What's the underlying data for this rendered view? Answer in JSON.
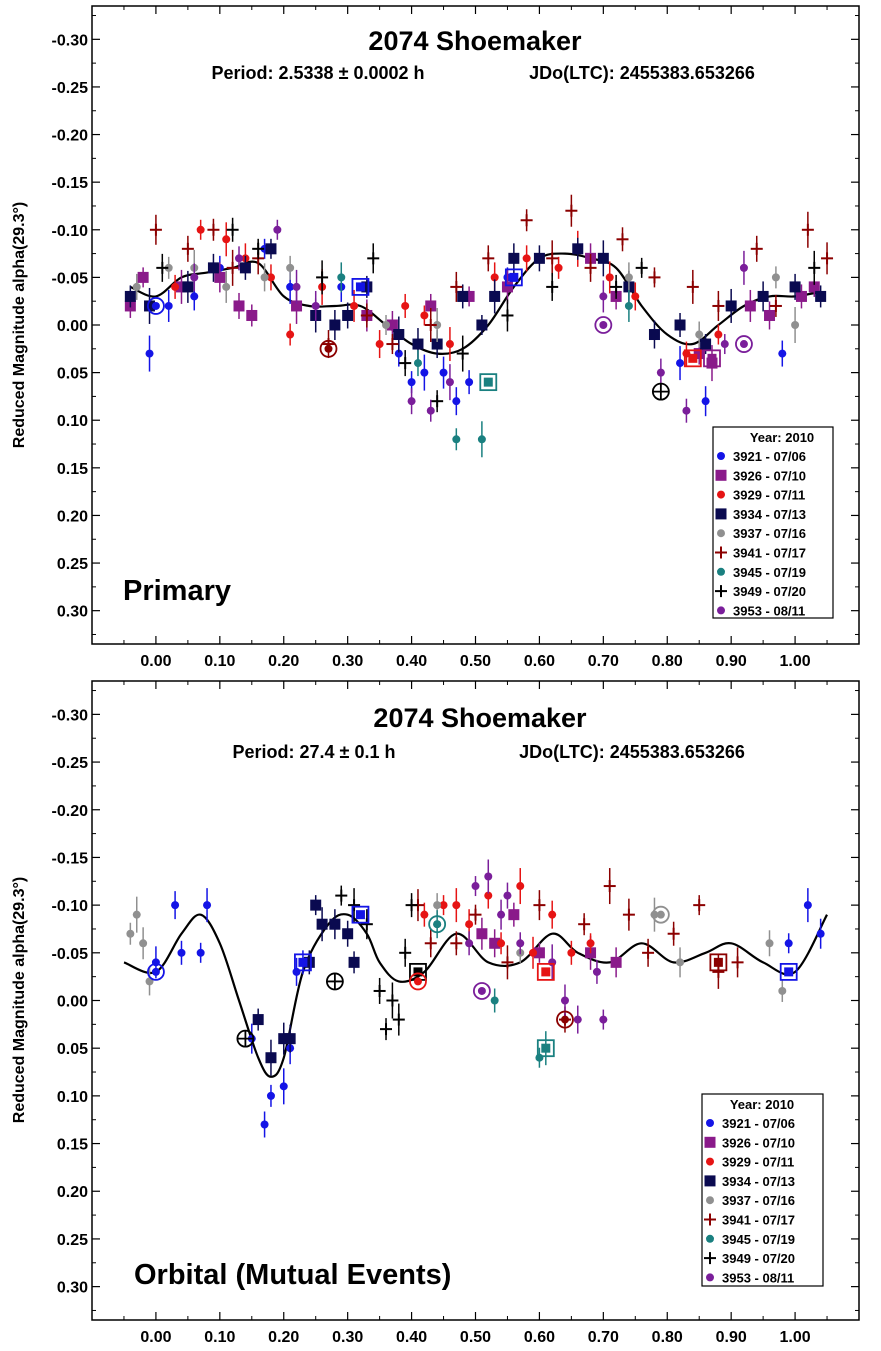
{
  "chart_data": [
    {
      "type": "scatter",
      "title": "2074 Shoemaker",
      "subtitle_period": "Period: 2.5338 ± 0.0002 h",
      "subtitle_epoch": "JDo(LTC): 2455383.653266",
      "ylabel": "Reduced Magnitude alpha(29.3°)",
      "panel_label": "Primary",
      "xlim": [
        -0.1,
        1.1
      ],
      "ylim": [
        0.335,
        -0.335
      ],
      "x_ticks": [
        "0.00",
        "0.10",
        "0.20",
        "0.30",
        "0.40",
        "0.50",
        "0.60",
        "0.70",
        "0.80",
        "0.90",
        "1.00"
      ],
      "y_ticks": [
        "-0.30",
        "-0.25",
        "-0.20",
        "-0.15",
        "-0.10",
        "-0.05",
        "0.00",
        "0.05",
        "0.10",
        "0.15",
        "0.20",
        "0.25",
        "0.30"
      ],
      "legend_title": "Year: 2010",
      "legend_position": "bottom-right",
      "fit_curve": {
        "x": [
          -0.04,
          0.0,
          0.04,
          0.08,
          0.12,
          0.16,
          0.2,
          0.24,
          0.28,
          0.32,
          0.36,
          0.4,
          0.44,
          0.48,
          0.52,
          0.56,
          0.6,
          0.64,
          0.68,
          0.72,
          0.76,
          0.8,
          0.84,
          0.88,
          0.92,
          0.96,
          1.0,
          1.04
        ],
        "y": [
          -0.04,
          -0.03,
          -0.05,
          -0.055,
          -0.06,
          -0.065,
          -0.03,
          -0.02,
          -0.02,
          -0.02,
          0.0,
          0.02,
          0.03,
          0.025,
          0.0,
          -0.04,
          -0.07,
          -0.075,
          -0.07,
          -0.06,
          -0.02,
          0.01,
          0.02,
          0.0,
          -0.02,
          -0.03,
          -0.03,
          -0.035
        ]
      },
      "series": [
        {
          "name": "3921 - 07/06",
          "marker": "circle",
          "color": "#1414e6",
          "x": [
            -0.01,
            0.02,
            0.06,
            0.1,
            0.17,
            0.21,
            0.29,
            0.38,
            0.4,
            0.42,
            0.45,
            0.47,
            0.49,
            0.55,
            0.82,
            0.86,
            0.98
          ],
          "y": [
            0.03,
            -0.02,
            -0.03,
            -0.06,
            -0.08,
            -0.04,
            -0.04,
            0.03,
            0.06,
            0.05,
            0.05,
            0.08,
            0.06,
            -0.05,
            0.04,
            0.08,
            0.03
          ]
        },
        {
          "name": "3926 - 07/10",
          "marker": "square",
          "color": "#8a1a8a",
          "x": [
            -0.04,
            -0.02,
            0.04,
            0.1,
            0.13,
            0.15,
            0.22,
            0.33,
            0.37,
            0.43,
            0.49,
            0.55,
            0.68,
            0.72,
            0.85,
            0.87,
            0.93,
            0.96,
            1.01,
            1.03
          ],
          "y": [
            -0.02,
            -0.05,
            -0.04,
            -0.05,
            -0.02,
            -0.01,
            -0.02,
            -0.01,
            0.0,
            -0.02,
            -0.03,
            -0.04,
            -0.07,
            -0.03,
            0.03,
            0.04,
            -0.02,
            -0.01,
            -0.03,
            -0.04
          ]
        },
        {
          "name": "3929 - 07/11",
          "marker": "circle",
          "color": "#e61414",
          "x": [
            0.03,
            0.07,
            0.11,
            0.14,
            0.18,
            0.21,
            0.26,
            0.31,
            0.35,
            0.39,
            0.42,
            0.46,
            0.53,
            0.58,
            0.63,
            0.66,
            0.71,
            0.75,
            0.83,
            0.88
          ],
          "y": [
            -0.04,
            -0.1,
            -0.09,
            -0.07,
            -0.05,
            0.01,
            -0.04,
            -0.02,
            0.02,
            -0.02,
            -0.01,
            0.02,
            -0.05,
            -0.07,
            -0.06,
            -0.08,
            -0.05,
            -0.03,
            0.03,
            0.01
          ]
        },
        {
          "name": "3934 - 07/13",
          "marker": "square",
          "color": "#0a0a50",
          "x": [
            -0.04,
            -0.01,
            0.05,
            0.09,
            0.14,
            0.18,
            0.25,
            0.28,
            0.3,
            0.33,
            0.38,
            0.41,
            0.44,
            0.48,
            0.51,
            0.53,
            0.56,
            0.6,
            0.66,
            0.7,
            0.74,
            0.78,
            0.82,
            0.86,
            0.9,
            0.95,
            1.0,
            1.04
          ],
          "y": [
            -0.03,
            -0.02,
            -0.04,
            -0.06,
            -0.06,
            -0.08,
            -0.01,
            0.0,
            -0.01,
            -0.04,
            0.01,
            0.02,
            0.02,
            -0.03,
            0.0,
            -0.03,
            -0.07,
            -0.07,
            -0.08,
            -0.07,
            -0.04,
            0.01,
            0.0,
            0.02,
            -0.02,
            -0.03,
            -0.04,
            -0.03
          ]
        },
        {
          "name": "3937 - 07/16",
          "marker": "circle",
          "color": "#909090",
          "x": [
            -0.03,
            0.02,
            0.06,
            0.11,
            0.17,
            0.21,
            0.36,
            0.44,
            0.74,
            0.85,
            0.97,
            1.0
          ],
          "y": [
            -0.04,
            -0.06,
            -0.06,
            -0.04,
            -0.05,
            -0.06,
            0.0,
            0.0,
            -0.05,
            0.01,
            -0.05,
            0.0
          ]
        },
        {
          "name": "3941 - 07/17",
          "marker": "plus",
          "color": "#8b0000",
          "x": [
            0.0,
            0.05,
            0.09,
            0.12,
            0.16,
            0.27,
            0.33,
            0.37,
            0.43,
            0.47,
            0.52,
            0.58,
            0.62,
            0.65,
            0.68,
            0.73,
            0.78,
            0.84,
            0.88,
            0.94,
            0.97,
            1.02,
            1.05
          ],
          "y": [
            -0.1,
            -0.08,
            -0.1,
            -0.06,
            -0.07,
            0.02,
            -0.01,
            0.02,
            0.0,
            -0.04,
            -0.07,
            -0.11,
            -0.07,
            -0.12,
            -0.06,
            -0.09,
            -0.05,
            -0.04,
            -0.02,
            -0.08,
            -0.02,
            -0.1,
            -0.07
          ]
        },
        {
          "name": "3945 - 07/19",
          "marker": "circle",
          "color": "#1a8080",
          "x": [
            0.29,
            0.41,
            0.47,
            0.51,
            0.74
          ],
          "y": [
            -0.05,
            0.04,
            0.12,
            0.12,
            -0.02
          ]
        },
        {
          "name": "3949 - 07/20",
          "marker": "plus",
          "color": "#000000",
          "x": [
            0.01,
            0.12,
            0.16,
            0.26,
            0.34,
            0.39,
            0.44,
            0.48,
            0.55,
            0.62,
            0.72,
            0.76,
            1.03
          ],
          "y": [
            -0.06,
            -0.1,
            -0.08,
            -0.05,
            -0.07,
            0.04,
            0.08,
            0.03,
            -0.01,
            -0.04,
            -0.04,
            -0.06,
            -0.06
          ]
        },
        {
          "name": "3953 - 08/11",
          "marker": "circle",
          "color": "#7a1e9a",
          "x": [
            0.06,
            0.13,
            0.19,
            0.22,
            0.25,
            0.4,
            0.43,
            0.46,
            0.7,
            0.79,
            0.83,
            0.89,
            0.92
          ],
          "y": [
            -0.05,
            -0.07,
            -0.1,
            -0.04,
            -0.02,
            0.08,
            0.09,
            0.06,
            -0.03,
            0.05,
            0.09,
            0.02,
            -0.06
          ]
        }
      ],
      "highlighted": [
        {
          "x": 0.0,
          "y": -0.02,
          "marker": "circle",
          "color": "#1414e6"
        },
        {
          "x": 0.27,
          "y": 0.025,
          "marker": "circle",
          "color": "#8b0000"
        },
        {
          "x": 0.32,
          "y": -0.04,
          "marker": "square",
          "color": "#1414e6"
        },
        {
          "x": 0.52,
          "y": 0.06,
          "marker": "square",
          "color": "#1a8080"
        },
        {
          "x": 0.56,
          "y": -0.05,
          "marker": "square",
          "color": "#1414e6"
        },
        {
          "x": 0.7,
          "y": 0.0,
          "marker": "circle",
          "color": "#7a1e9a"
        },
        {
          "x": 0.79,
          "y": 0.07,
          "marker": "circle-plus",
          "color": "#000000"
        },
        {
          "x": 0.84,
          "y": 0.035,
          "marker": "square",
          "color": "#e61414"
        },
        {
          "x": 0.87,
          "y": 0.035,
          "marker": "square",
          "color": "#8a1a8a"
        },
        {
          "x": 0.92,
          "y": 0.02,
          "marker": "circle",
          "color": "#7a1e9a"
        }
      ]
    },
    {
      "type": "scatter",
      "title": "2074 Shoemaker",
      "subtitle_period": "Period: 27.4 ± 0.1 h",
      "subtitle_epoch": "JDo(LTC): 2455383.653266",
      "ylabel": "Reduced Magnitude alpha(29.3°)",
      "panel_label": "Orbital (Mutual Events)",
      "xlim": [
        -0.1,
        1.1
      ],
      "ylim": [
        0.335,
        -0.335
      ],
      "x_ticks": [
        "0.00",
        "0.10",
        "0.20",
        "0.30",
        "0.40",
        "0.50",
        "0.60",
        "0.70",
        "0.80",
        "0.90",
        "1.00"
      ],
      "y_ticks": [
        "-0.30",
        "-0.25",
        "-0.20",
        "-0.15",
        "-0.10",
        "-0.05",
        "0.00",
        "0.05",
        "0.10",
        "0.15",
        "0.20",
        "0.25",
        "0.30"
      ],
      "legend_title": "Year: 2010",
      "legend_position": "bottom-right",
      "fit_curve": {
        "x": [
          -0.05,
          0.0,
          0.04,
          0.07,
          0.1,
          0.13,
          0.16,
          0.18,
          0.2,
          0.23,
          0.27,
          0.3,
          0.33,
          0.35,
          0.38,
          0.42,
          0.47,
          0.52,
          0.57,
          0.62,
          0.66,
          0.71,
          0.76,
          0.81,
          0.86,
          0.9,
          0.95,
          1.0,
          1.05
        ],
        "y": [
          -0.04,
          -0.03,
          -0.07,
          -0.09,
          -0.06,
          0.0,
          0.06,
          0.08,
          0.06,
          -0.03,
          -0.08,
          -0.09,
          -0.07,
          -0.04,
          -0.02,
          -0.03,
          -0.07,
          -0.04,
          -0.04,
          -0.07,
          -0.05,
          -0.04,
          -0.06,
          -0.04,
          -0.05,
          -0.06,
          -0.04,
          -0.03,
          -0.09
        ]
      },
      "series": [
        {
          "name": "3921 - 07/06",
          "marker": "circle",
          "color": "#1414e6",
          "x": [
            0.0,
            0.03,
            0.04,
            0.07,
            0.08,
            0.15,
            0.17,
            0.18,
            0.2,
            0.21,
            0.22,
            0.23,
            0.99,
            1.02,
            1.04
          ],
          "y": [
            -0.04,
            -0.1,
            -0.05,
            -0.05,
            -0.1,
            0.04,
            0.13,
            0.1,
            0.09,
            0.05,
            -0.03,
            -0.04,
            -0.06,
            -0.1,
            -0.07
          ]
        },
        {
          "name": "3926 - 07/10",
          "marker": "square",
          "color": "#8a1a8a",
          "x": [
            0.51,
            0.53,
            0.56,
            0.6,
            0.68,
            0.72
          ],
          "y": [
            -0.07,
            -0.06,
            -0.09,
            -0.05,
            -0.05,
            -0.04
          ]
        },
        {
          "name": "3929 - 07/11",
          "marker": "circle",
          "color": "#e61414",
          "x": [
            0.42,
            0.45,
            0.47,
            0.49,
            0.52,
            0.54,
            0.57,
            0.59,
            0.62,
            0.65,
            0.68
          ],
          "y": [
            -0.09,
            -0.1,
            -0.1,
            -0.08,
            -0.11,
            -0.06,
            -0.12,
            -0.05,
            -0.09,
            -0.05,
            -0.06
          ]
        },
        {
          "name": "3934 - 07/13",
          "marker": "square",
          "color": "#0a0a50",
          "x": [
            0.16,
            0.18,
            0.2,
            0.21,
            0.24,
            0.25,
            0.26,
            0.28,
            0.3,
            0.31
          ],
          "y": [
            0.02,
            0.06,
            0.04,
            0.04,
            -0.04,
            -0.1,
            -0.08,
            -0.08,
            -0.07,
            -0.04
          ]
        },
        {
          "name": "3937 - 07/16",
          "marker": "circle",
          "color": "#909090",
          "x": [
            -0.04,
            -0.03,
            -0.02,
            -0.01,
            0.44,
            0.57,
            0.78,
            0.82,
            0.96,
            0.98
          ],
          "y": [
            -0.07,
            -0.09,
            -0.06,
            -0.02,
            -0.1,
            -0.05,
            -0.09,
            -0.04,
            -0.06,
            -0.01
          ]
        },
        {
          "name": "3941 - 07/17",
          "marker": "plus",
          "color": "#8b0000",
          "x": [
            0.41,
            0.43,
            0.47,
            0.5,
            0.55,
            0.6,
            0.64,
            0.67,
            0.71,
            0.74,
            0.77,
            0.81,
            0.85,
            0.88,
            0.91
          ],
          "y": [
            -0.1,
            -0.06,
            -0.06,
            -0.09,
            -0.04,
            -0.1,
            0.02,
            -0.08,
            -0.12,
            -0.09,
            -0.05,
            -0.07,
            -0.1,
            -0.03,
            -0.04
          ]
        },
        {
          "name": "3945 - 07/19",
          "marker": "circle",
          "color": "#1a8080",
          "x": [
            0.44,
            0.53,
            0.6,
            0.61
          ],
          "y": [
            -0.08,
            0.0,
            0.06,
            0.05
          ]
        },
        {
          "name": "3949 - 07/20",
          "marker": "plus",
          "color": "#000000",
          "x": [
            0.29,
            0.31,
            0.33,
            0.35,
            0.36,
            0.37,
            0.38,
            0.39,
            0.4
          ],
          "y": [
            -0.11,
            -0.1,
            -0.08,
            -0.01,
            0.03,
            0.0,
            0.02,
            -0.05,
            -0.1
          ]
        },
        {
          "name": "3953 - 08/11",
          "marker": "circle",
          "color": "#7a1e9a",
          "x": [
            0.49,
            0.5,
            0.52,
            0.54,
            0.55,
            0.57,
            0.62,
            0.64,
            0.66,
            0.69,
            0.7
          ],
          "y": [
            -0.06,
            -0.12,
            -0.13,
            -0.09,
            -0.11,
            -0.06,
            -0.04,
            0.0,
            0.02,
            -0.03,
            0.02
          ]
        }
      ],
      "highlighted": [
        {
          "x": 0.0,
          "y": -0.03,
          "marker": "circle",
          "color": "#1414e6"
        },
        {
          "x": 0.14,
          "y": 0.04,
          "marker": "circle-plus",
          "color": "#000000"
        },
        {
          "x": 0.23,
          "y": -0.04,
          "marker": "square",
          "color": "#1414e6"
        },
        {
          "x": 0.28,
          "y": -0.02,
          "marker": "circle-plus",
          "color": "#000000"
        },
        {
          "x": 0.32,
          "y": -0.09,
          "marker": "square",
          "color": "#1414e6"
        },
        {
          "x": 0.41,
          "y": -0.03,
          "marker": "square",
          "color": "#000000"
        },
        {
          "x": 0.41,
          "y": -0.02,
          "marker": "circle",
          "color": "#e61414"
        },
        {
          "x": 0.44,
          "y": -0.08,
          "marker": "circle",
          "color": "#1a8080"
        },
        {
          "x": 0.51,
          "y": -0.01,
          "marker": "circle",
          "color": "#7a1e9a"
        },
        {
          "x": 0.61,
          "y": 0.05,
          "marker": "square",
          "color": "#1a8080"
        },
        {
          "x": 0.61,
          "y": -0.03,
          "marker": "square",
          "color": "#e61414"
        },
        {
          "x": 0.64,
          "y": 0.02,
          "marker": "circle",
          "color": "#8b0000"
        },
        {
          "x": 0.79,
          "y": -0.09,
          "marker": "circle",
          "color": "#909090"
        },
        {
          "x": 0.88,
          "y": -0.04,
          "marker": "square",
          "color": "#8b0000"
        },
        {
          "x": 0.99,
          "y": -0.03,
          "marker": "square",
          "color": "#1414e6"
        }
      ]
    }
  ]
}
